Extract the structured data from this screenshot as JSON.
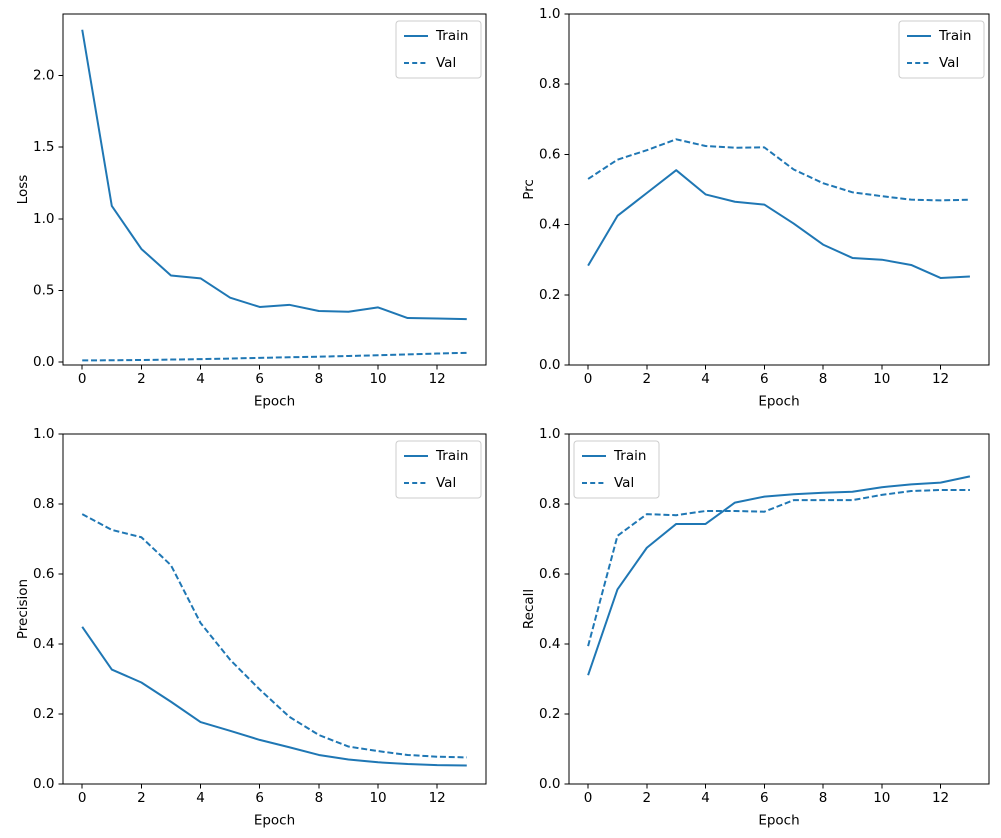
{
  "figure": {
    "background": "#ffffff",
    "line_color": "#1f77b4",
    "spine_color": "#000000",
    "text_color": "#000000",
    "legend_border_color": "#cccccc",
    "legend_background": "#ffffff"
  },
  "legend": {
    "train_label": "Train",
    "val_label": "Val"
  },
  "chart_data": [
    {
      "type": "line",
      "key": "loss",
      "title": "",
      "xlabel": "Epoch",
      "ylabel": "Loss",
      "x": [
        0,
        1,
        2,
        3,
        4,
        5,
        6,
        7,
        8,
        9,
        10,
        11,
        12,
        13
      ],
      "series": [
        {
          "name": "Train",
          "style": "solid",
          "values": [
            2.32,
            1.09,
            0.79,
            0.605,
            0.585,
            0.45,
            0.385,
            0.4,
            0.357,
            0.352,
            0.382,
            0.308,
            0.305,
            0.3
          ]
        },
        {
          "name": "Val",
          "style": "dashed",
          "values": [
            0.012,
            0.013,
            0.015,
            0.018,
            0.021,
            0.025,
            0.03,
            0.034,
            0.038,
            0.043,
            0.048,
            0.054,
            0.06,
            0.065
          ]
        }
      ],
      "xlim": [
        -0.65,
        13.65
      ],
      "ylim": [
        -0.02,
        2.43
      ],
      "xticks": {
        "values": [
          0,
          2,
          4,
          6,
          8,
          10,
          12
        ],
        "labels": [
          "0",
          "2",
          "4",
          "6",
          "8",
          "10",
          "12"
        ]
      },
      "yticks": {
        "values": [
          0.0,
          0.5,
          1.0,
          1.5,
          2.0
        ],
        "labels": [
          "0.0",
          "0.5",
          "1.0",
          "1.5",
          "2.0"
        ]
      },
      "grid": false,
      "legend_position": "upper-right"
    },
    {
      "type": "line",
      "key": "prc",
      "title": "",
      "xlabel": "Epoch",
      "ylabel": "Prc",
      "x": [
        0,
        1,
        2,
        3,
        4,
        5,
        6,
        7,
        8,
        9,
        10,
        11,
        12,
        13
      ],
      "series": [
        {
          "name": "Train",
          "style": "solid",
          "values": [
            0.283,
            0.425,
            0.49,
            0.555,
            0.486,
            0.465,
            0.457,
            0.403,
            0.343,
            0.305,
            0.3,
            0.285,
            0.248,
            0.252
          ]
        },
        {
          "name": "Val",
          "style": "dashed",
          "values": [
            0.53,
            0.585,
            0.612,
            0.643,
            0.624,
            0.619,
            0.62,
            0.557,
            0.518,
            0.492,
            0.481,
            0.471,
            0.469,
            0.471
          ]
        }
      ],
      "xlim": [
        -0.65,
        13.65
      ],
      "ylim": [
        0.0,
        1.0
      ],
      "xticks": {
        "values": [
          0,
          2,
          4,
          6,
          8,
          10,
          12
        ],
        "labels": [
          "0",
          "2",
          "4",
          "6",
          "8",
          "10",
          "12"
        ]
      },
      "yticks": {
        "values": [
          0.0,
          0.2,
          0.4,
          0.6,
          0.8,
          1.0
        ],
        "labels": [
          "0.0",
          "0.2",
          "0.4",
          "0.6",
          "0.8",
          "1.0"
        ]
      },
      "grid": false,
      "legend_position": "upper-right"
    },
    {
      "type": "line",
      "key": "precision",
      "title": "",
      "xlabel": "Epoch",
      "ylabel": "Precision",
      "x": [
        0,
        1,
        2,
        3,
        4,
        5,
        6,
        7,
        8,
        9,
        10,
        11,
        12,
        13
      ],
      "series": [
        {
          "name": "Train",
          "style": "solid",
          "values": [
            0.449,
            0.327,
            0.29,
            0.235,
            0.177,
            0.152,
            0.126,
            0.105,
            0.083,
            0.07,
            0.062,
            0.057,
            0.054,
            0.053
          ]
        },
        {
          "name": "Val",
          "style": "dashed",
          "values": [
            0.771,
            0.726,
            0.705,
            0.625,
            0.46,
            0.355,
            0.27,
            0.192,
            0.14,
            0.107,
            0.094,
            0.083,
            0.078,
            0.076
          ]
        }
      ],
      "xlim": [
        -0.65,
        13.65
      ],
      "ylim": [
        0.0,
        1.0
      ],
      "xticks": {
        "values": [
          0,
          2,
          4,
          6,
          8,
          10,
          12
        ],
        "labels": [
          "0",
          "2",
          "4",
          "6",
          "8",
          "10",
          "12"
        ]
      },
      "yticks": {
        "values": [
          0.0,
          0.2,
          0.4,
          0.6,
          0.8,
          1.0
        ],
        "labels": [
          "0.0",
          "0.2",
          "0.4",
          "0.6",
          "0.8",
          "1.0"
        ]
      },
      "grid": false,
      "legend_position": "upper-right"
    },
    {
      "type": "line",
      "key": "recall",
      "title": "",
      "xlabel": "Epoch",
      "ylabel": "Recall",
      "x": [
        0,
        1,
        2,
        3,
        4,
        5,
        6,
        7,
        8,
        9,
        10,
        11,
        12,
        13
      ],
      "series": [
        {
          "name": "Train",
          "style": "solid",
          "values": [
            0.311,
            0.556,
            0.675,
            0.743,
            0.743,
            0.804,
            0.821,
            0.828,
            0.832,
            0.835,
            0.848,
            0.856,
            0.861,
            0.879
          ]
        },
        {
          "name": "Val",
          "style": "dashed",
          "values": [
            0.394,
            0.709,
            0.771,
            0.768,
            0.78,
            0.78,
            0.778,
            0.811,
            0.811,
            0.811,
            0.826,
            0.837,
            0.84,
            0.84
          ]
        }
      ],
      "xlim": [
        -0.65,
        13.65
      ],
      "ylim": [
        0.0,
        1.0
      ],
      "xticks": {
        "values": [
          0,
          2,
          4,
          6,
          8,
          10,
          12
        ],
        "labels": [
          "0",
          "2",
          "4",
          "6",
          "8",
          "10",
          "12"
        ]
      },
      "yticks": {
        "values": [
          0.0,
          0.2,
          0.4,
          0.6,
          0.8,
          1.0
        ],
        "labels": [
          "0.0",
          "0.2",
          "0.4",
          "0.6",
          "0.8",
          "1.0"
        ]
      },
      "grid": false,
      "legend_position": "upper-left"
    }
  ]
}
